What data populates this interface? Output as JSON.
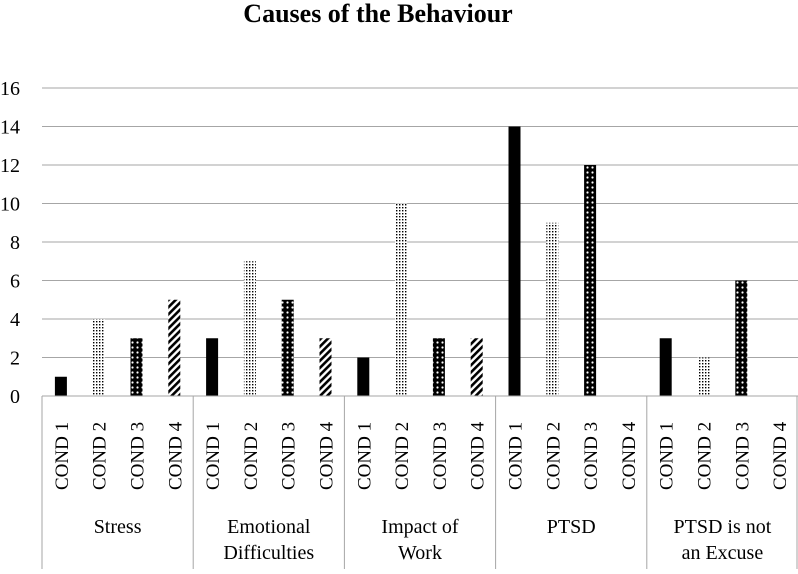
{
  "chart_data": {
    "type": "bar",
    "title": "Causes of the Behaviour",
    "xlabel": "",
    "ylabel": "",
    "ylim": [
      0,
      16
    ],
    "yticks": [
      0,
      2,
      4,
      6,
      8,
      10,
      12,
      14,
      16
    ],
    "grid": true,
    "legend": "none",
    "groups": [
      "Stress",
      "Emotional Difficulties",
      "Impact of Work",
      "PTSD",
      "PTSD is not an Excuse"
    ],
    "conditions": [
      "COND 1",
      "COND 2",
      "COND 3",
      "COND 4"
    ],
    "series": [
      {
        "values": [
          1,
          3,
          2,
          14,
          3
        ]
      },
      {
        "values": [
          4,
          7,
          10,
          9,
          2
        ]
      },
      {
        "values": [
          3,
          5,
          3,
          12,
          6
        ]
      },
      {
        "values": [
          5,
          3,
          3,
          0,
          0
        ]
      }
    ]
  }
}
